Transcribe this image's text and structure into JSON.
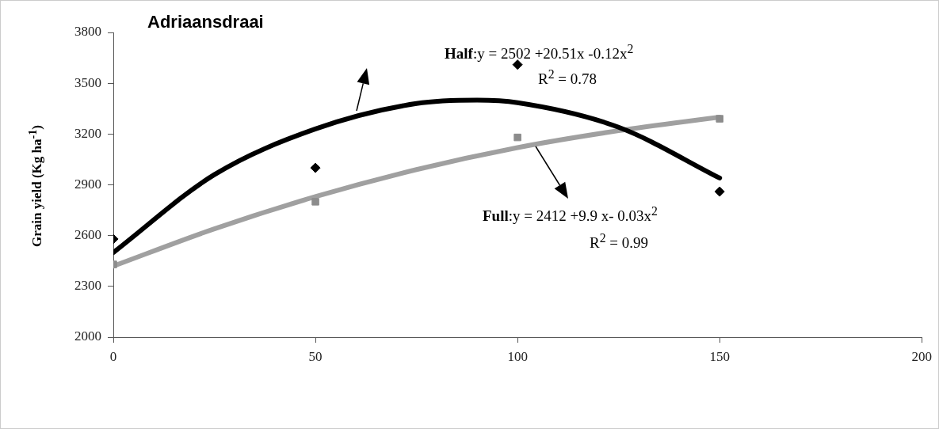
{
  "chart_data": {
    "type": "scatter",
    "title": "Adriaansdraai",
    "ylabel": "Grain yield (Kg ha$^{-1}$)",
    "xlim": [
      0,
      200
    ],
    "xticks": [
      0,
      50,
      100,
      150,
      200
    ],
    "ylim": [
      2000,
      3800
    ],
    "yticks": [
      2000,
      2300,
      2600,
      2900,
      3200,
      3500,
      3800
    ],
    "grid": false,
    "legend": false,
    "series": [
      {
        "type": "scatter",
        "color": "#000000",
        "marker": "diamond",
        "x": [
          0,
          50,
          100,
          150
        ],
        "values": [
          2580,
          3000,
          3610,
          2860
        ]
      },
      {
        "type": "scatter",
        "color": "#8c8c8c",
        "marker": "square",
        "x": [
          0,
          50,
          100,
          150
        ],
        "values": [
          2430,
          2800,
          3180,
          3290
        ]
      },
      {
        "type": "line",
        "color": "#000000",
        "marker": "none",
        "x": [
          0,
          25,
          50,
          75,
          90,
          100,
          125,
          150
        ],
        "values": [
          2500,
          2960,
          3230,
          3380,
          3400,
          3385,
          3240,
          2940
        ]
      },
      {
        "type": "line",
        "color": "#a0a0a0",
        "marker": "none",
        "x": [
          0,
          25,
          50,
          75,
          100,
          125,
          150
        ],
        "values": [
          2420,
          2640,
          2830,
          2990,
          3120,
          3220,
          3300
        ]
      }
    ],
    "annotations": [
      "Half:y = 2502 +20.51x -0.12x$^{2}$",
      "R$^{2}$ = 0.78",
      "Full:y = 2412 +9.9 x- 0.03x$^{2}$",
      "R$^{2}$ = 0.99"
    ]
  }
}
